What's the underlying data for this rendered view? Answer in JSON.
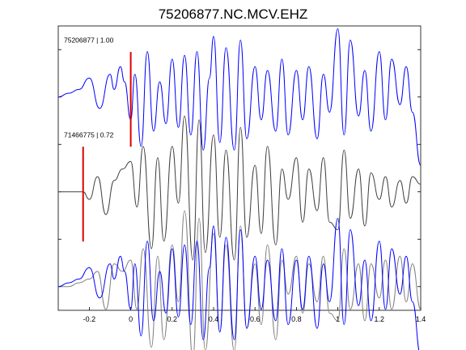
{
  "chart_data": {
    "type": "line",
    "title": "75206877.NC.MCV.EHZ",
    "xlabel": "",
    "ylabel": "",
    "xlim": [
      -0.35,
      1.4
    ],
    "xticks": [
      -0.2,
      0,
      0.2,
      0.4,
      0.6,
      0.8,
      1,
      1.2,
      1.4
    ],
    "xtick_labels": [
      "-0.2",
      "0",
      "0.2",
      "0.4",
      "0.6",
      "0.8",
      "1",
      "1.2",
      "1.4"
    ],
    "ylim": [
      -5.5,
      0.5
    ],
    "grid": false,
    "panels": [
      {
        "label": "75206877 | 1.00",
        "offset": -1,
        "pick_time": 0,
        "series": [
          {
            "id": "master",
            "color": "#0000ff",
            "x": [
              -0.35,
              -0.3,
              -0.25,
              -0.2,
              -0.15,
              -0.1,
              -0.08,
              -0.05,
              -0.03,
              0,
              0.02,
              0.05,
              0.08,
              0.11,
              0.14,
              0.17,
              0.2,
              0.23,
              0.26,
              0.29,
              0.32,
              0.35,
              0.38,
              0.4,
              0.43,
              0.46,
              0.5,
              0.53,
              0.56,
              0.6,
              0.63,
              0.66,
              0.7,
              0.73,
              0.76,
              0.8,
              0.83,
              0.86,
              0.9,
              0.93,
              0.96,
              1,
              1.03,
              1.06,
              1.1,
              1.13,
              1.16,
              1.2,
              1.23,
              1.26,
              1.3,
              1.33,
              1.36,
              1.4
            ],
            "y": [
              0,
              0.05,
              0.1,
              0.25,
              -0.15,
              0.3,
              0.1,
              0.4,
              0.2,
              -0.3,
              0.3,
              -0.65,
              0.6,
              -0.45,
              0.2,
              -0.35,
              0.5,
              -0.4,
              0.55,
              -0.5,
              0.6,
              -0.7,
              0.25,
              0.8,
              -0.6,
              0.65,
              -0.7,
              0.75,
              -0.55,
              0.4,
              -0.3,
              0.35,
              -0.45,
              0.5,
              -0.5,
              0.35,
              -0.3,
              0.4,
              -0.55,
              0.3,
              -0.2,
              0.9,
              -0.5,
              0.75,
              -0.25,
              0.35,
              -0.45,
              0.6,
              -0.3,
              0.5,
              -0.1,
              0.4,
              -0.2,
              -0.9
            ]
          }
        ]
      },
      {
        "label": "71466775 | 0.72",
        "offset": -3,
        "pick_time": -0.23,
        "series": [
          {
            "id": "template",
            "color": "#404040",
            "x": [
              -0.35,
              -0.23,
              -0.2,
              -0.16,
              -0.12,
              -0.08,
              -0.04,
              0,
              0.03,
              0.06,
              0.1,
              0.13,
              0.16,
              0.2,
              0.23,
              0.26,
              0.3,
              0.33,
              0.36,
              0.4,
              0.43,
              0.46,
              0.5,
              0.53,
              0.56,
              0.6,
              0.63,
              0.66,
              0.7,
              0.73,
              0.76,
              0.8,
              0.83,
              0.86,
              0.9,
              0.93,
              0.96,
              1,
              1.03,
              1.06,
              1.1,
              1.13,
              1.16,
              1.2,
              1.23,
              1.26,
              1.3,
              1.33,
              1.36,
              1.4
            ],
            "y": [
              0,
              0,
              -0.1,
              0.2,
              -0.3,
              0.15,
              0.3,
              0.4,
              -0.2,
              0.6,
              -0.75,
              0.45,
              -0.65,
              0.6,
              -0.15,
              1.0,
              -0.9,
              0.95,
              -0.8,
              0.75,
              -0.6,
              0.55,
              -0.9,
              0.85,
              -0.6,
              0.35,
              -0.55,
              0.6,
              -0.7,
              0.3,
              -0.1,
              0.45,
              -0.4,
              0.3,
              -0.25,
              0.45,
              -0.4,
              -0.5,
              0.55,
              -0.35,
              0.3,
              -0.45,
              0.25,
              -0.1,
              0.2,
              -0.2,
              0.15,
              -0.15,
              0.2,
              0.1
            ]
          }
        ]
      },
      {
        "label": "",
        "offset": -5,
        "series": [
          {
            "id": "template-overlay",
            "color": "#808080",
            "x": [
              -0.35,
              -0.3,
              -0.25,
              -0.2,
              -0.16,
              -0.12,
              -0.08,
              -0.04,
              0,
              0.03,
              0.06,
              0.1,
              0.13,
              0.16,
              0.2,
              0.23,
              0.26,
              0.3,
              0.33,
              0.36,
              0.4,
              0.43,
              0.46,
              0.5,
              0.53,
              0.56,
              0.6,
              0.63,
              0.66,
              0.7,
              0.73,
              0.76,
              0.8,
              0.83,
              0.86,
              0.9,
              0.93,
              0.96,
              1,
              1.03,
              1.06,
              1.1,
              1.13,
              1.16,
              1.2,
              1.23,
              1.26,
              1.3,
              1.33,
              1.36,
              1.4
            ],
            "y": [
              0,
              0,
              0.05,
              0.1,
              0.2,
              -0.3,
              0.3,
              0.2,
              0.35,
              -0.3,
              0.5,
              -0.8,
              0.4,
              -0.7,
              0.55,
              -0.2,
              1.0,
              -0.95,
              0.9,
              -0.85,
              0.7,
              -0.6,
              0.55,
              -0.85,
              0.8,
              -0.55,
              0.3,
              -0.5,
              0.55,
              -0.7,
              0.35,
              -0.1,
              0.4,
              -0.35,
              0.3,
              -0.2,
              0.4,
              -0.35,
              -0.45,
              0.5,
              -0.3,
              0.3,
              -0.45,
              0.3,
              -0.15,
              0.35,
              -0.3,
              0.4,
              -0.2,
              0.3,
              -0.3
            ]
          },
          {
            "id": "master-overlay",
            "color": "#0000ff",
            "x": [
              -0.35,
              -0.3,
              -0.25,
              -0.2,
              -0.15,
              -0.1,
              -0.08,
              -0.05,
              -0.03,
              0,
              0.02,
              0.05,
              0.08,
              0.11,
              0.14,
              0.17,
              0.2,
              0.23,
              0.26,
              0.29,
              0.32,
              0.35,
              0.38,
              0.4,
              0.43,
              0.46,
              0.5,
              0.53,
              0.56,
              0.6,
              0.63,
              0.66,
              0.7,
              0.73,
              0.76,
              0.8,
              0.83,
              0.86,
              0.9,
              0.93,
              0.96,
              1,
              1.03,
              1.06,
              1.1,
              1.13,
              1.16,
              1.2,
              1.23,
              1.26,
              1.3,
              1.33,
              1.36,
              1.4
            ],
            "y": [
              0,
              0.05,
              0.1,
              0.25,
              -0.15,
              0.3,
              0.1,
              0.4,
              0.2,
              -0.3,
              0.3,
              -0.65,
              0.6,
              -0.45,
              0.2,
              -0.35,
              0.5,
              -0.4,
              0.55,
              -0.5,
              0.6,
              -0.7,
              0.25,
              0.8,
              -0.6,
              0.65,
              -0.7,
              0.75,
              -0.55,
              0.4,
              -0.3,
              0.35,
              -0.45,
              0.5,
              -0.5,
              0.35,
              -0.3,
              0.4,
              -0.55,
              0.3,
              -0.2,
              0.9,
              -0.5,
              0.75,
              -0.25,
              0.35,
              -0.45,
              0.6,
              -0.3,
              0.5,
              -0.1,
              0.4,
              -0.2,
              -0.9
            ]
          }
        ]
      }
    ],
    "pick_color": "#dd0000"
  }
}
